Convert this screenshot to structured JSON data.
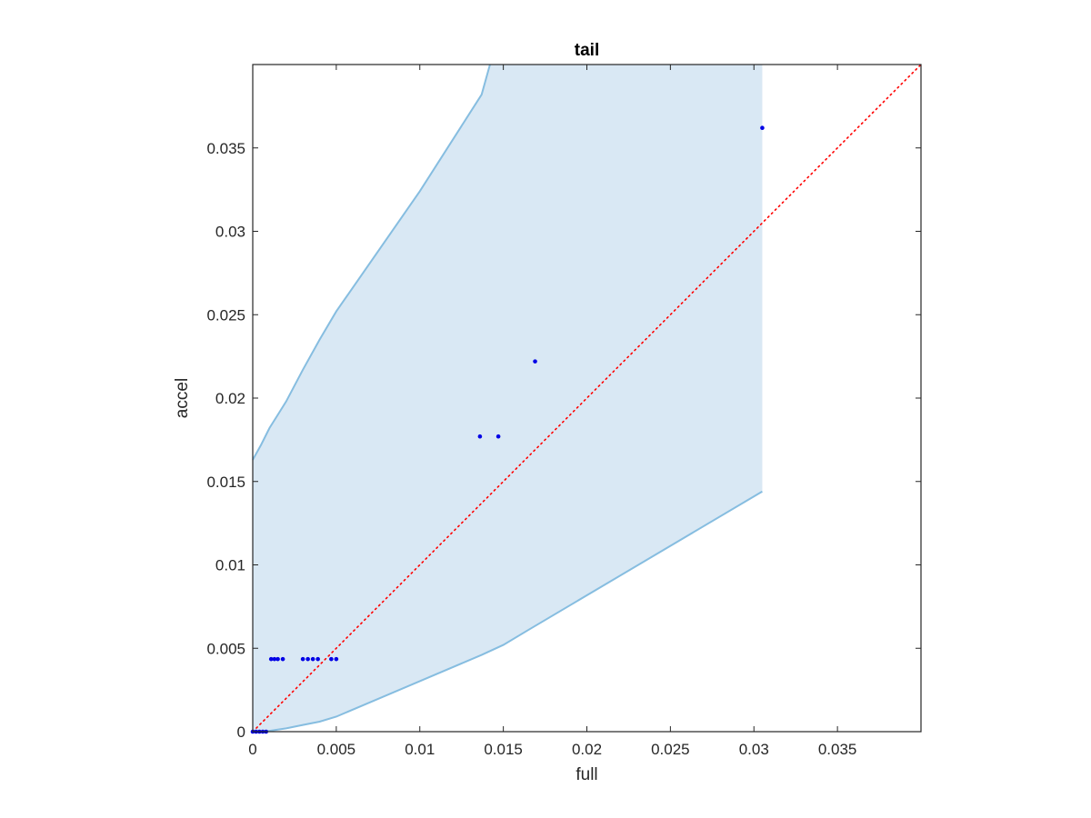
{
  "chart_data": {
    "type": "scatter",
    "title": "tail",
    "xlabel": "full",
    "ylabel": "accel",
    "xlim": [
      0,
      0.04
    ],
    "ylim": [
      0,
      0.04
    ],
    "xticks": [
      "0",
      "0.005",
      "0.01",
      "0.015",
      "0.02",
      "0.025",
      "0.03",
      "0.035"
    ],
    "yticks": [
      "0",
      "0.005",
      "0.01",
      "0.015",
      "0.02",
      "0.025",
      "0.03",
      "0.035"
    ],
    "grid": false,
    "colors": {
      "points": "#0000e6",
      "reference_line": "#ff0000",
      "band_fill": "#d9e8f4",
      "band_edge": "#86bde0",
      "axes": "#262626"
    },
    "points": [
      {
        "x": 0.0,
        "y": 0.0
      },
      {
        "x": 0.0002,
        "y": 0.0
      },
      {
        "x": 0.0004,
        "y": 0.0
      },
      {
        "x": 0.0006,
        "y": 0.0
      },
      {
        "x": 0.0008,
        "y": 0.0
      },
      {
        "x": 0.0011,
        "y": 0.00435
      },
      {
        "x": 0.0013,
        "y": 0.00435
      },
      {
        "x": 0.0015,
        "y": 0.00435
      },
      {
        "x": 0.0018,
        "y": 0.00435
      },
      {
        "x": 0.003,
        "y": 0.00435
      },
      {
        "x": 0.0033,
        "y": 0.00435
      },
      {
        "x": 0.0036,
        "y": 0.00435
      },
      {
        "x": 0.0039,
        "y": 0.00435
      },
      {
        "x": 0.0047,
        "y": 0.00435
      },
      {
        "x": 0.005,
        "y": 0.00435
      },
      {
        "x": 0.0136,
        "y": 0.0177
      },
      {
        "x": 0.0147,
        "y": 0.0177
      },
      {
        "x": 0.0169,
        "y": 0.0222
      },
      {
        "x": 0.0305,
        "y": 0.0362
      }
    ],
    "reference_line": {
      "style": "dotted",
      "x": [
        0,
        0.04
      ],
      "y": [
        0,
        0.04
      ]
    },
    "band": {
      "upper": {
        "x": [
          0,
          0.0005,
          0.001,
          0.0015,
          0.002,
          0.003,
          0.004,
          0.005,
          0.01,
          0.0137,
          0.0142,
          0.0305
        ],
        "y": [
          0.0163,
          0.0172,
          0.0182,
          0.019,
          0.0198,
          0.0217,
          0.0235,
          0.0252,
          0.0324,
          0.0382,
          0.04,
          0.04
        ]
      },
      "lower": {
        "x": [
          0,
          0.001,
          0.002,
          0.003,
          0.004,
          0.005,
          0.0137,
          0.015,
          0.0165,
          0.0305
        ],
        "y": [
          0,
          5e-05,
          0.0002,
          0.0004,
          0.0006,
          0.0009,
          0.0046,
          0.0052,
          0.0061,
          0.0144
        ]
      }
    }
  }
}
